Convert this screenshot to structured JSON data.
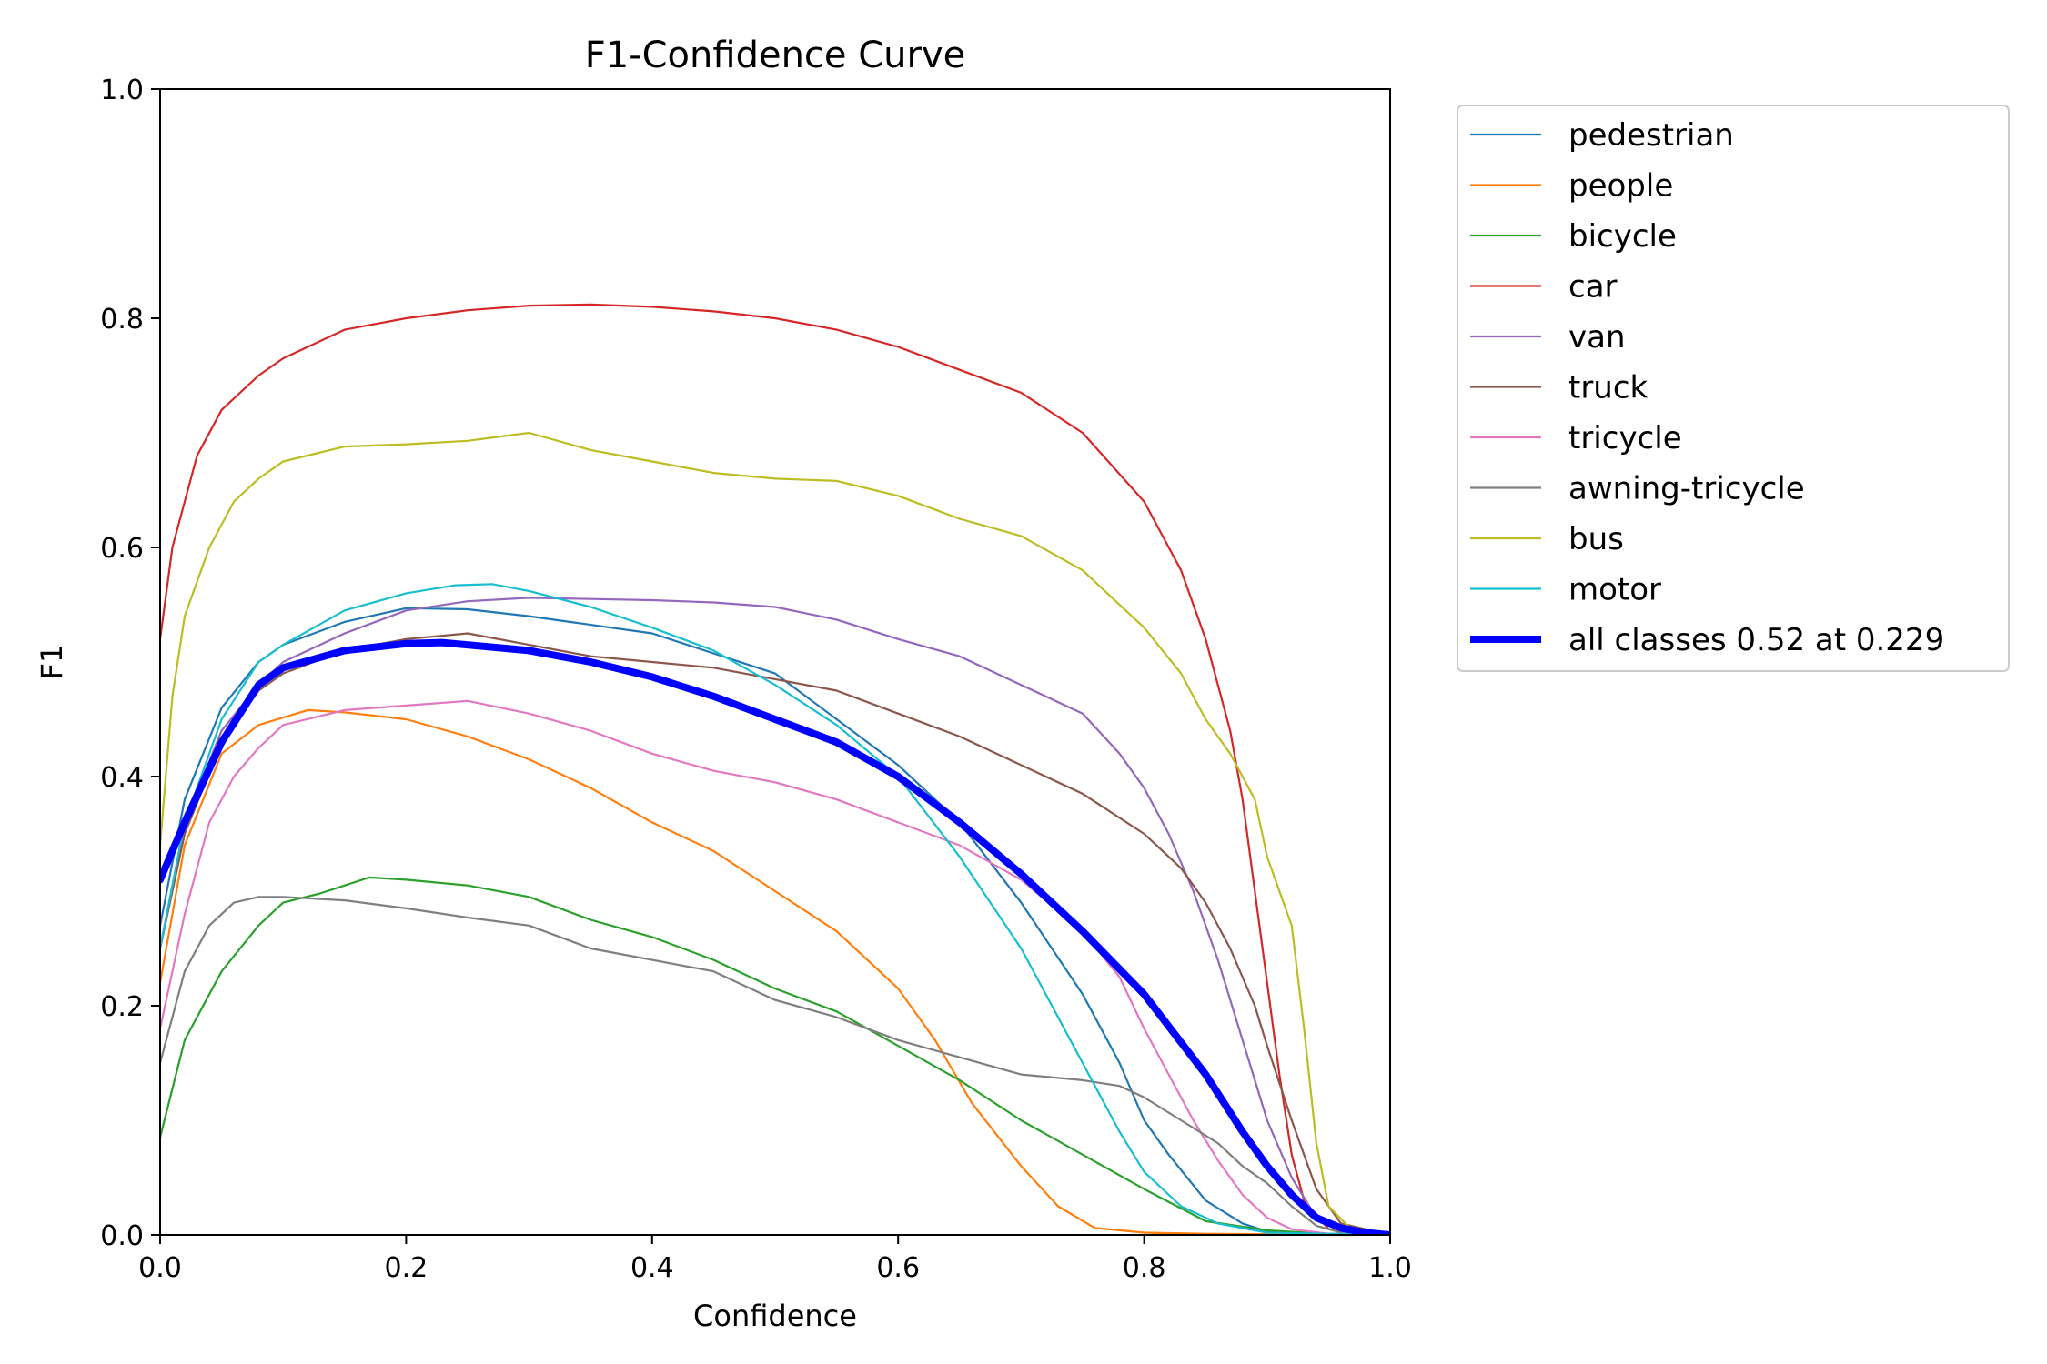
{
  "chart_data": {
    "type": "line",
    "title": "F1-Confidence Curve",
    "xlabel": "Confidence",
    "ylabel": "F1",
    "xlim": [
      0.0,
      1.0
    ],
    "ylim": [
      0.0,
      1.0
    ],
    "xticks": [
      "0.0",
      "0.2",
      "0.4",
      "0.6",
      "0.8",
      "1.0"
    ],
    "yticks": [
      "0.0",
      "0.2",
      "0.4",
      "0.6",
      "0.8",
      "1.0"
    ],
    "grid": false,
    "legend_position": "outside-top-right",
    "series": [
      {
        "name": "pedestrian",
        "color": "#1f77b4",
        "width": "thin",
        "x": [
          0,
          0.02,
          0.05,
          0.08,
          0.1,
          0.15,
          0.2,
          0.25,
          0.3,
          0.4,
          0.5,
          0.6,
          0.65,
          0.7,
          0.75,
          0.78,
          0.8,
          0.82,
          0.85,
          0.88,
          0.9,
          0.95,
          1.0
        ],
        "y": [
          0.27,
          0.38,
          0.46,
          0.5,
          0.515,
          0.535,
          0.547,
          0.546,
          0.54,
          0.525,
          0.49,
          0.41,
          0.36,
          0.29,
          0.21,
          0.15,
          0.1,
          0.07,
          0.03,
          0.01,
          0.003,
          0.001,
          0
        ]
      },
      {
        "name": "people",
        "color": "#ff7f0e",
        "width": "thin",
        "x": [
          0,
          0.02,
          0.05,
          0.08,
          0.12,
          0.15,
          0.2,
          0.25,
          0.3,
          0.35,
          0.4,
          0.45,
          0.5,
          0.55,
          0.6,
          0.63,
          0.66,
          0.7,
          0.73,
          0.76,
          0.8,
          0.85,
          1.0
        ],
        "y": [
          0.22,
          0.34,
          0.42,
          0.445,
          0.458,
          0.456,
          0.45,
          0.435,
          0.415,
          0.39,
          0.36,
          0.335,
          0.3,
          0.265,
          0.215,
          0.17,
          0.115,
          0.06,
          0.025,
          0.006,
          0.002,
          0.001,
          0
        ]
      },
      {
        "name": "bicycle",
        "color": "#2ca02c",
        "width": "thin",
        "x": [
          0,
          0.02,
          0.05,
          0.08,
          0.1,
          0.13,
          0.17,
          0.2,
          0.25,
          0.3,
          0.35,
          0.4,
          0.45,
          0.5,
          0.55,
          0.6,
          0.65,
          0.7,
          0.75,
          0.8,
          0.85,
          0.9,
          0.95,
          1.0
        ],
        "y": [
          0.085,
          0.17,
          0.23,
          0.27,
          0.29,
          0.298,
          0.312,
          0.31,
          0.305,
          0.295,
          0.275,
          0.26,
          0.24,
          0.215,
          0.195,
          0.165,
          0.135,
          0.1,
          0.07,
          0.04,
          0.012,
          0.004,
          0.001,
          0
        ]
      },
      {
        "name": "car",
        "color": "#d62728",
        "width": "thin",
        "x": [
          0,
          0.01,
          0.03,
          0.05,
          0.08,
          0.1,
          0.15,
          0.2,
          0.25,
          0.3,
          0.35,
          0.4,
          0.45,
          0.5,
          0.55,
          0.6,
          0.65,
          0.7,
          0.75,
          0.8,
          0.83,
          0.85,
          0.87,
          0.88,
          0.89,
          0.9,
          0.91,
          0.92,
          0.93,
          0.95,
          1.0
        ],
        "y": [
          0.52,
          0.6,
          0.68,
          0.72,
          0.75,
          0.765,
          0.79,
          0.8,
          0.807,
          0.811,
          0.812,
          0.81,
          0.806,
          0.8,
          0.79,
          0.775,
          0.755,
          0.735,
          0.7,
          0.64,
          0.58,
          0.52,
          0.44,
          0.38,
          0.3,
          0.22,
          0.14,
          0.07,
          0.03,
          0.005,
          0
        ]
      },
      {
        "name": "van",
        "color": "#9467bd",
        "width": "thin",
        "x": [
          0,
          0.02,
          0.05,
          0.08,
          0.1,
          0.15,
          0.2,
          0.25,
          0.3,
          0.35,
          0.4,
          0.45,
          0.5,
          0.55,
          0.6,
          0.65,
          0.7,
          0.75,
          0.78,
          0.8,
          0.82,
          0.84,
          0.86,
          0.88,
          0.9,
          0.92,
          0.94,
          0.96,
          1.0
        ],
        "y": [
          0.25,
          0.36,
          0.44,
          0.48,
          0.5,
          0.525,
          0.545,
          0.553,
          0.556,
          0.555,
          0.554,
          0.552,
          0.548,
          0.537,
          0.52,
          0.505,
          0.48,
          0.455,
          0.42,
          0.39,
          0.35,
          0.3,
          0.24,
          0.17,
          0.1,
          0.05,
          0.015,
          0.003,
          0
        ]
      },
      {
        "name": "truck",
        "color": "#8c564b",
        "width": "thin",
        "x": [
          0,
          0.02,
          0.05,
          0.08,
          0.1,
          0.15,
          0.2,
          0.25,
          0.3,
          0.35,
          0.4,
          0.45,
          0.5,
          0.55,
          0.6,
          0.65,
          0.7,
          0.75,
          0.8,
          0.83,
          0.85,
          0.87,
          0.89,
          0.9,
          0.92,
          0.94,
          0.96,
          1.0
        ],
        "y": [
          0.25,
          0.35,
          0.43,
          0.475,
          0.49,
          0.51,
          0.52,
          0.525,
          0.515,
          0.505,
          0.5,
          0.495,
          0.485,
          0.475,
          0.455,
          0.435,
          0.41,
          0.385,
          0.35,
          0.32,
          0.29,
          0.25,
          0.2,
          0.165,
          0.1,
          0.04,
          0.01,
          0
        ]
      },
      {
        "name": "tricycle",
        "color": "#e377c2",
        "width": "thin",
        "x": [
          0,
          0.02,
          0.04,
          0.06,
          0.08,
          0.1,
          0.15,
          0.2,
          0.25,
          0.3,
          0.35,
          0.4,
          0.45,
          0.5,
          0.55,
          0.6,
          0.65,
          0.7,
          0.75,
          0.78,
          0.8,
          0.82,
          0.84,
          0.86,
          0.88,
          0.9,
          0.92,
          0.95,
          1.0
        ],
        "y": [
          0.18,
          0.28,
          0.36,
          0.4,
          0.425,
          0.445,
          0.458,
          0.462,
          0.466,
          0.455,
          0.44,
          0.42,
          0.405,
          0.395,
          0.38,
          0.36,
          0.34,
          0.31,
          0.265,
          0.225,
          0.18,
          0.14,
          0.1,
          0.065,
          0.035,
          0.015,
          0.005,
          0.001,
          0
        ]
      },
      {
        "name": "awning-tricycle",
        "color": "#7f7f7f",
        "width": "thin",
        "x": [
          0,
          0.02,
          0.04,
          0.06,
          0.08,
          0.1,
          0.15,
          0.2,
          0.25,
          0.3,
          0.35,
          0.4,
          0.45,
          0.5,
          0.55,
          0.6,
          0.65,
          0.7,
          0.75,
          0.78,
          0.8,
          0.83,
          0.86,
          0.88,
          0.9,
          0.92,
          0.94,
          0.96,
          1.0
        ],
        "y": [
          0.15,
          0.23,
          0.27,
          0.29,
          0.295,
          0.295,
          0.292,
          0.285,
          0.277,
          0.27,
          0.25,
          0.24,
          0.23,
          0.205,
          0.19,
          0.17,
          0.155,
          0.14,
          0.135,
          0.13,
          0.12,
          0.1,
          0.08,
          0.06,
          0.045,
          0.025,
          0.008,
          0.002,
          0
        ]
      },
      {
        "name": "bus",
        "color": "#bcbd22",
        "width": "thin",
        "x": [
          0,
          0.01,
          0.02,
          0.04,
          0.06,
          0.08,
          0.1,
          0.15,
          0.2,
          0.25,
          0.3,
          0.35,
          0.4,
          0.45,
          0.5,
          0.55,
          0.6,
          0.65,
          0.7,
          0.75,
          0.8,
          0.83,
          0.85,
          0.87,
          0.89,
          0.9,
          0.92,
          0.93,
          0.94,
          0.95,
          0.97,
          1.0
        ],
        "y": [
          0.34,
          0.47,
          0.54,
          0.6,
          0.64,
          0.66,
          0.675,
          0.688,
          0.69,
          0.693,
          0.7,
          0.685,
          0.675,
          0.665,
          0.66,
          0.658,
          0.645,
          0.625,
          0.61,
          0.58,
          0.53,
          0.49,
          0.45,
          0.42,
          0.38,
          0.33,
          0.27,
          0.18,
          0.08,
          0.025,
          0.003,
          0
        ]
      },
      {
        "name": "motor",
        "color": "#17becf",
        "width": "thin",
        "x": [
          0,
          0.02,
          0.05,
          0.08,
          0.1,
          0.15,
          0.2,
          0.24,
          0.27,
          0.3,
          0.35,
          0.4,
          0.45,
          0.5,
          0.55,
          0.6,
          0.65,
          0.7,
          0.73,
          0.76,
          0.78,
          0.8,
          0.83,
          0.86,
          0.9,
          1.0
        ],
        "y": [
          0.25,
          0.36,
          0.45,
          0.5,
          0.515,
          0.545,
          0.56,
          0.567,
          0.568,
          0.562,
          0.548,
          0.53,
          0.51,
          0.48,
          0.445,
          0.4,
          0.33,
          0.25,
          0.19,
          0.13,
          0.09,
          0.055,
          0.025,
          0.01,
          0.002,
          0
        ]
      },
      {
        "name": "all classes 0.52 at 0.229",
        "color": "#0000ff",
        "width": "thick",
        "x": [
          0,
          0.02,
          0.05,
          0.08,
          0.1,
          0.15,
          0.2,
          0.229,
          0.3,
          0.35,
          0.4,
          0.45,
          0.5,
          0.55,
          0.6,
          0.65,
          0.7,
          0.75,
          0.8,
          0.85,
          0.88,
          0.9,
          0.92,
          0.94,
          0.96,
          0.98,
          1.0
        ],
        "y": [
          0.31,
          0.36,
          0.43,
          0.48,
          0.495,
          0.51,
          0.516,
          0.517,
          0.51,
          0.5,
          0.487,
          0.47,
          0.45,
          0.43,
          0.4,
          0.36,
          0.315,
          0.265,
          0.21,
          0.14,
          0.09,
          0.06,
          0.035,
          0.015,
          0.006,
          0.002,
          0
        ]
      }
    ]
  }
}
